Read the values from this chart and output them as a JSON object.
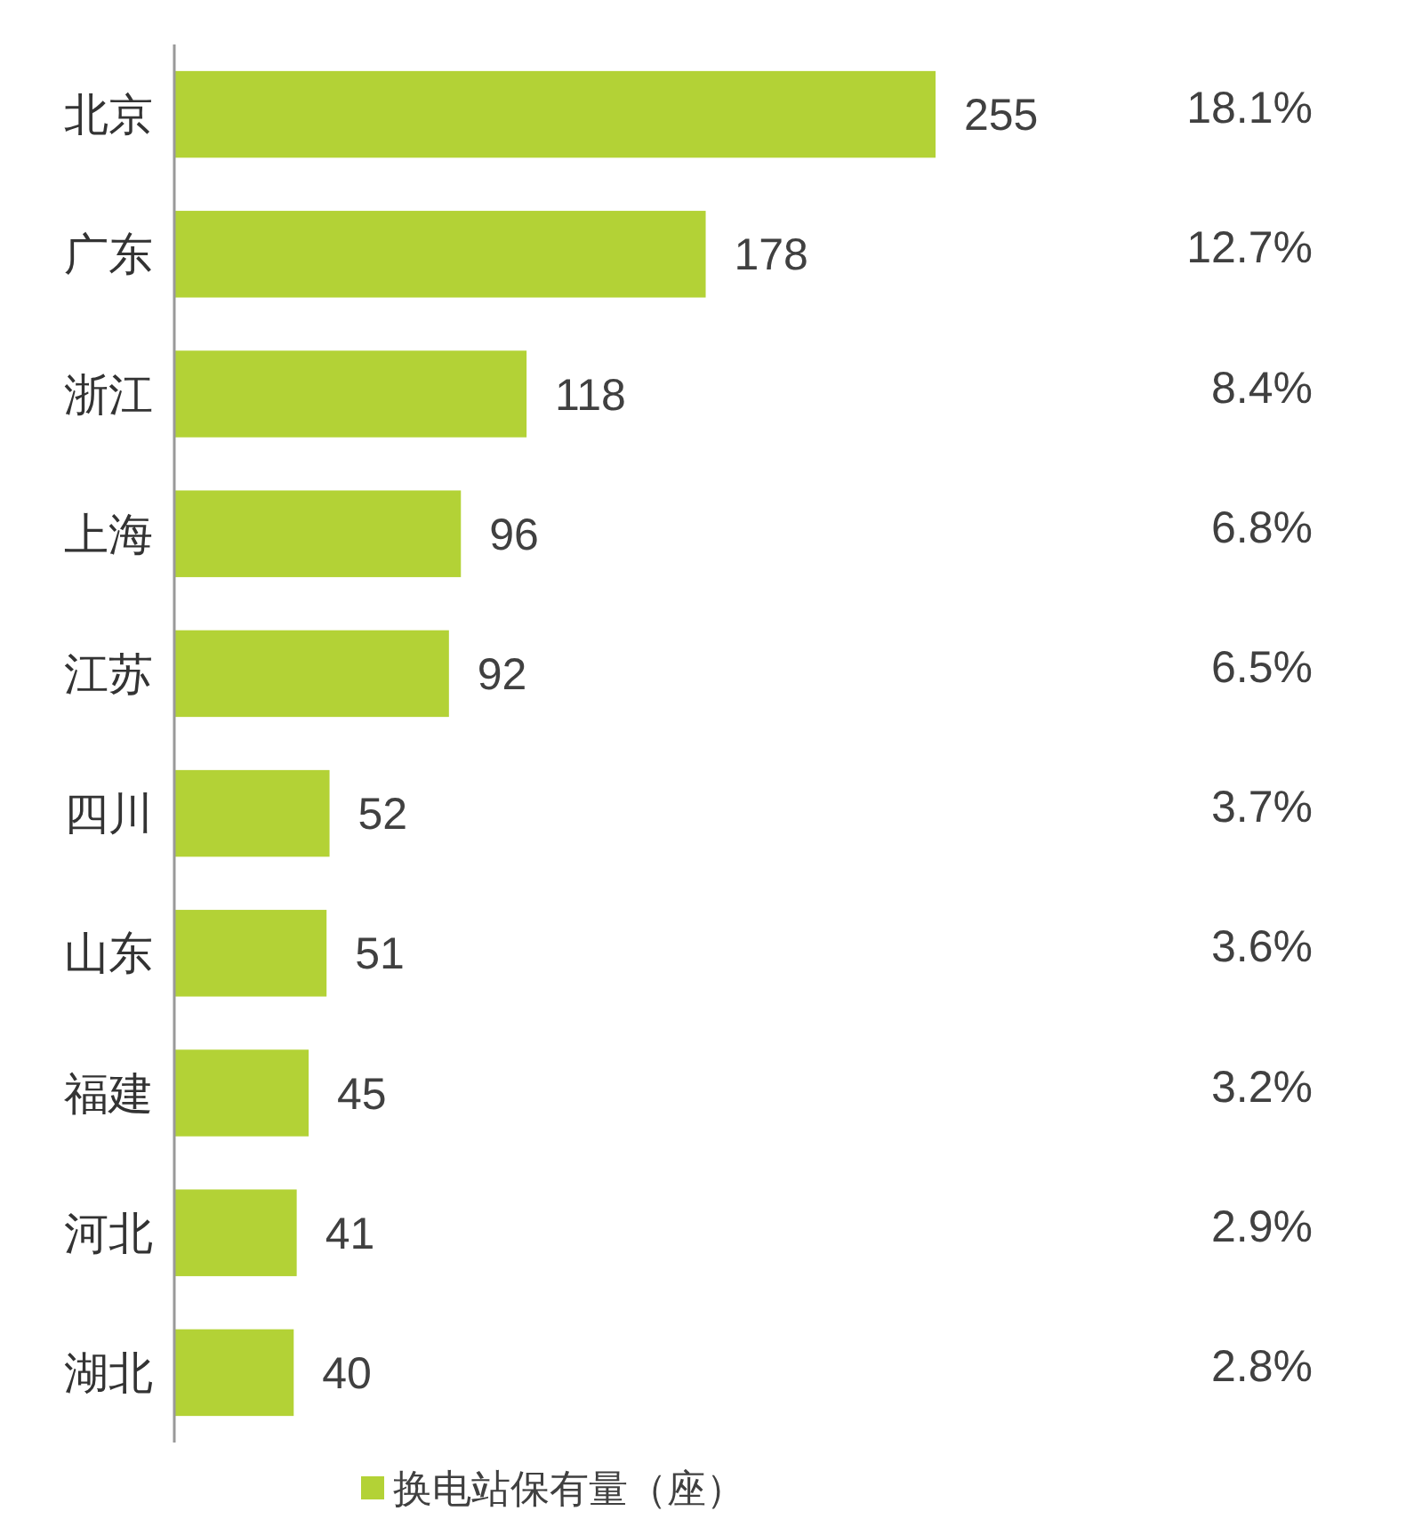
{
  "chart_data": {
    "type": "bar",
    "orientation": "horizontal",
    "categories": [
      "北京",
      "广东",
      "浙江",
      "上海",
      "江苏",
      "四川",
      "山东",
      "福建",
      "河北",
      "湖北"
    ],
    "series": [
      {
        "name": "换电站保有量（座）",
        "color": "#b3d236",
        "values": [
          255,
          178,
          118,
          96,
          92,
          52,
          51,
          45,
          41,
          40
        ]
      }
    ],
    "data_labels": true,
    "legend": "bottom",
    "annotations": [
      "18.1%",
      "12.7%",
      "8.4%",
      "6.8%",
      "6.5%",
      "3.7%",
      "3.6%",
      "3.2%",
      "2.9%",
      "2.8%"
    ]
  }
}
